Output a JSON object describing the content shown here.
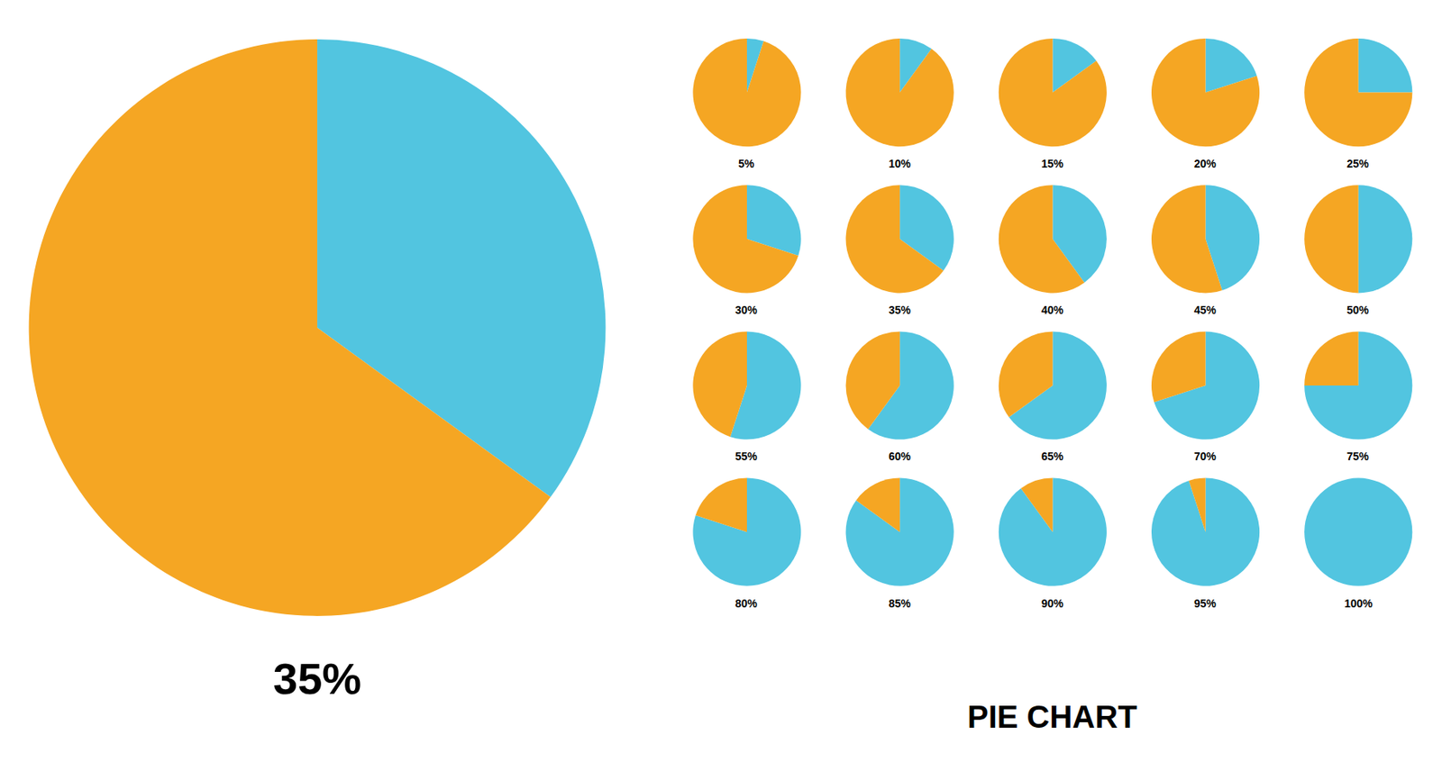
{
  "chart_data": [
    {
      "type": "pie",
      "title": "PIE CHART",
      "values": [
        35,
        65
      ],
      "value_labels": [
        "35%",
        null
      ],
      "colors": [
        "#52C5E0",
        "#F5A623"
      ]
    },
    {
      "type": "pie",
      "values": [
        5,
        95
      ],
      "value_labels": [
        "5%",
        null
      ],
      "colors": [
        "#52C5E0",
        "#F5A623"
      ]
    },
    {
      "type": "pie",
      "values": [
        10,
        90
      ],
      "value_labels": [
        "10%",
        null
      ],
      "colors": [
        "#52C5E0",
        "#F5A623"
      ]
    },
    {
      "type": "pie",
      "values": [
        15,
        85
      ],
      "value_labels": [
        "15%",
        null
      ],
      "colors": [
        "#52C5E0",
        "#F5A623"
      ]
    },
    {
      "type": "pie",
      "values": [
        20,
        80
      ],
      "value_labels": [
        "20%",
        null
      ],
      "colors": [
        "#52C5E0",
        "#F5A623"
      ]
    },
    {
      "type": "pie",
      "values": [
        25,
        75
      ],
      "value_labels": [
        "25%",
        null
      ],
      "colors": [
        "#52C5E0",
        "#F5A623"
      ]
    },
    {
      "type": "pie",
      "values": [
        30,
        70
      ],
      "value_labels": [
        "30%",
        null
      ],
      "colors": [
        "#52C5E0",
        "#F5A623"
      ]
    },
    {
      "type": "pie",
      "values": [
        35,
        65
      ],
      "value_labels": [
        "35%",
        null
      ],
      "colors": [
        "#52C5E0",
        "#F5A623"
      ]
    },
    {
      "type": "pie",
      "values": [
        40,
        60
      ],
      "value_labels": [
        "40%",
        null
      ],
      "colors": [
        "#52C5E0",
        "#F5A623"
      ]
    },
    {
      "type": "pie",
      "values": [
        45,
        55
      ],
      "value_labels": [
        "45%",
        null
      ],
      "colors": [
        "#52C5E0",
        "#F5A623"
      ]
    },
    {
      "type": "pie",
      "values": [
        50,
        50
      ],
      "value_labels": [
        "50%",
        null
      ],
      "colors": [
        "#52C5E0",
        "#F5A623"
      ]
    },
    {
      "type": "pie",
      "values": [
        55,
        45
      ],
      "value_labels": [
        "55%",
        null
      ],
      "colors": [
        "#52C5E0",
        "#F5A623"
      ]
    },
    {
      "type": "pie",
      "values": [
        60,
        40
      ],
      "value_labels": [
        "60%",
        null
      ],
      "colors": [
        "#52C5E0",
        "#F5A623"
      ]
    },
    {
      "type": "pie",
      "values": [
        65,
        35
      ],
      "value_labels": [
        "65%",
        null
      ],
      "colors": [
        "#52C5E0",
        "#F5A623"
      ]
    },
    {
      "type": "pie",
      "values": [
        70,
        30
      ],
      "value_labels": [
        "70%",
        null
      ],
      "colors": [
        "#52C5E0",
        "#F5A623"
      ]
    },
    {
      "type": "pie",
      "values": [
        75,
        25
      ],
      "value_labels": [
        "75%",
        null
      ],
      "colors": [
        "#52C5E0",
        "#F5A623"
      ]
    },
    {
      "type": "pie",
      "values": [
        80,
        20
      ],
      "value_labels": [
        "80%",
        null
      ],
      "colors": [
        "#52C5E0",
        "#F5A623"
      ]
    },
    {
      "type": "pie",
      "values": [
        85,
        15
      ],
      "value_labels": [
        "85%",
        null
      ],
      "colors": [
        "#52C5E0",
        "#F5A623"
      ]
    },
    {
      "type": "pie",
      "values": [
        90,
        10
      ],
      "value_labels": [
        "90%",
        null
      ],
      "colors": [
        "#52C5E0",
        "#F5A623"
      ]
    },
    {
      "type": "pie",
      "values": [
        95,
        5
      ],
      "value_labels": [
        "95%",
        null
      ],
      "colors": [
        "#52C5E0",
        "#F5A623"
      ]
    },
    {
      "type": "pie",
      "values": [
        100,
        0
      ],
      "value_labels": [
        "100%",
        null
      ],
      "colors": [
        "#52C5E0",
        "#F5A623"
      ]
    }
  ]
}
